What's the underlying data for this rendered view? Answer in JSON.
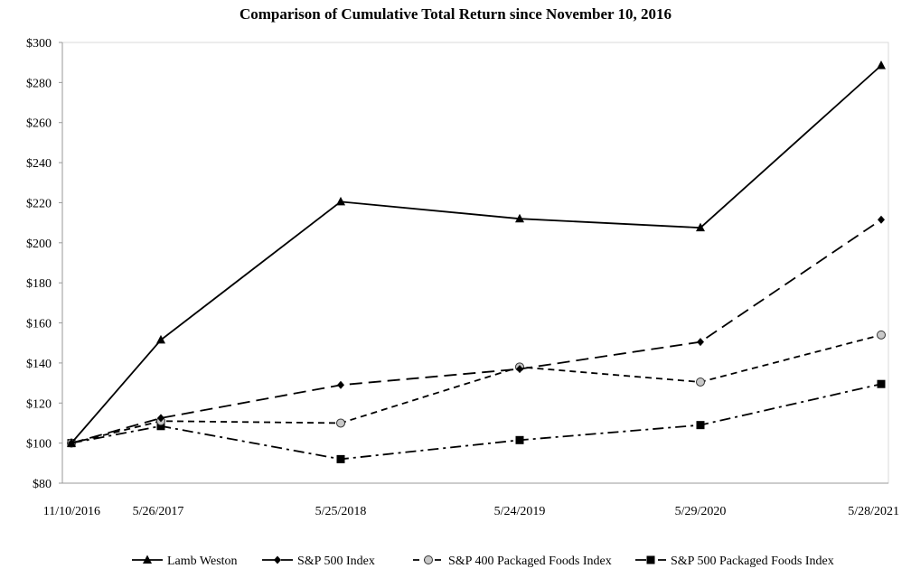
{
  "chart_data": {
    "type": "line",
    "title": "Comparison of Cumulative Total Return since November 10, 2016",
    "xlabel": "",
    "ylabel": "",
    "categories": [
      "11/10/2016",
      "5/26/2017",
      "5/25/2018",
      "5/24/2019",
      "5/29/2020",
      "5/28/2021"
    ],
    "y_tick_labels": [
      "$80",
      "$100",
      "$120",
      "$140",
      "$160",
      "$180",
      "$200",
      "$220",
      "$240",
      "$260",
      "$280",
      "$300"
    ],
    "ylim": [
      80,
      300
    ],
    "grid": false,
    "legend_position": "bottom",
    "series": [
      {
        "name": "Lamb Weston",
        "marker": "triangle",
        "line_style": "solid",
        "values": [
          100,
          151.5,
          220.5,
          212,
          207.5,
          288.5
        ]
      },
      {
        "name": "S&P 500 Index",
        "marker": "diamond",
        "line_style": "long-dash",
        "values": [
          100,
          112.5,
          129,
          137,
          150.5,
          211.5
        ]
      },
      {
        "name": "S&P 400 Packaged Foods Index",
        "marker": "circle",
        "line_style": "short-dash",
        "values": [
          100,
          111,
          110,
          138,
          130.5,
          154
        ]
      },
      {
        "name": "S&P 500 Packaged Foods Index",
        "marker": "square",
        "line_style": "dash-dot",
        "values": [
          100,
          108.5,
          92,
          101.5,
          109,
          129.5
        ]
      }
    ]
  }
}
